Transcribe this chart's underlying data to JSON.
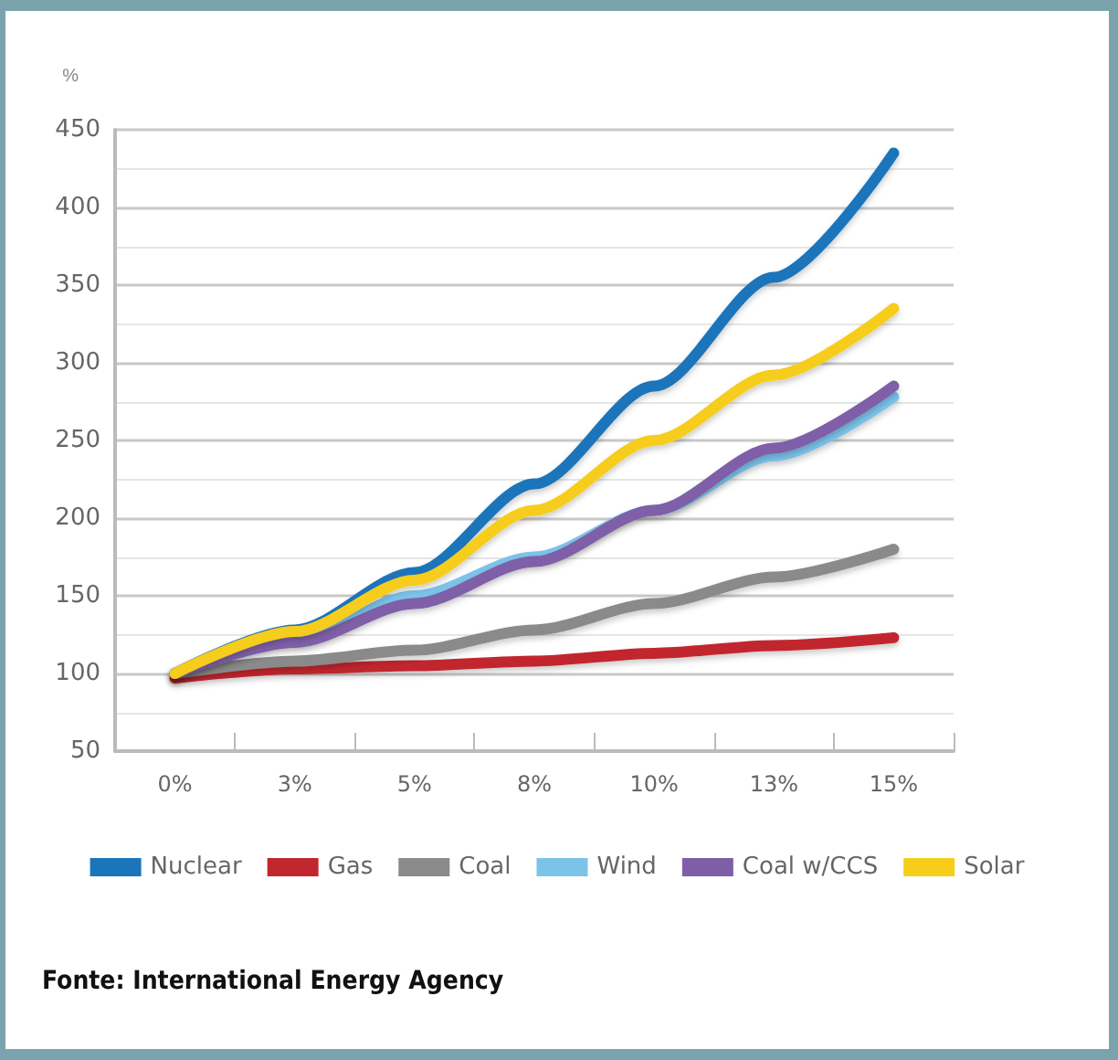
{
  "chart_data": {
    "type": "line",
    "ylabel": "%",
    "categories": [
      "0%",
      "3%",
      "5%",
      "8%",
      "10%",
      "13%",
      "15%"
    ],
    "series": [
      {
        "name": "Nuclear",
        "color": "#1a75bb",
        "values": [
          100,
          128,
          165,
          222,
          285,
          355,
          435
        ]
      },
      {
        "name": "Gas",
        "color": "#c1272d",
        "values": [
          97,
          103,
          105,
          108,
          113,
          118,
          123
        ]
      },
      {
        "name": "Coal",
        "color": "#8a8a8a",
        "values": [
          100,
          108,
          115,
          128,
          145,
          162,
          180
        ]
      },
      {
        "name": "Wind",
        "color": "#7cc3ea",
        "values": [
          100,
          122,
          150,
          175,
          205,
          240,
          278
        ]
      },
      {
        "name": "Coal w/CCS",
        "color": "#7f5ea8",
        "values": [
          100,
          120,
          145,
          172,
          205,
          245,
          285
        ]
      },
      {
        "name": "Solar",
        "color": "#f6cd1a",
        "values": [
          100,
          127,
          160,
          205,
          250,
          292,
          335
        ]
      }
    ],
    "ylim": [
      50,
      450
    ],
    "yticks": [
      50,
      100,
      150,
      200,
      250,
      300,
      350,
      400,
      450
    ],
    "grid": "y",
    "legend": "bottom",
    "marker": "none",
    "line_style": "solid",
    "annotations": [
      "Fonte: International Energy Agency"
    ]
  }
}
